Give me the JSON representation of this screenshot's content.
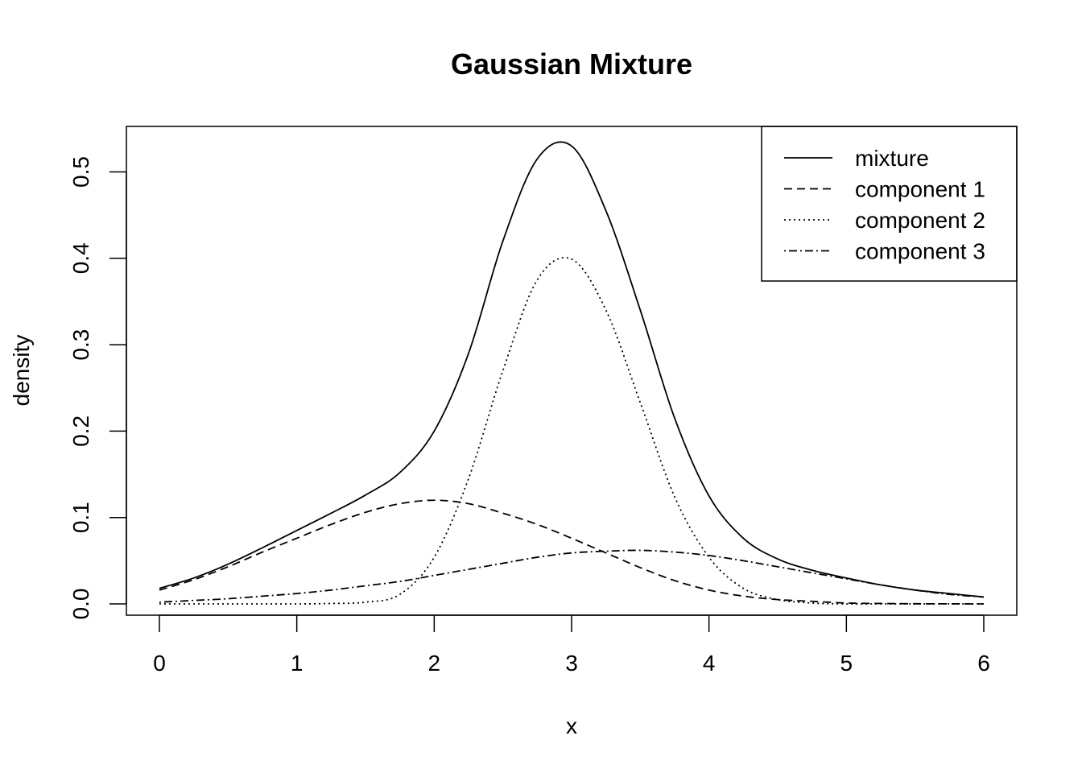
{
  "chart_data": {
    "type": "line",
    "title": "Gaussian Mixture",
    "xlabel": "x",
    "ylabel": "density",
    "xlim": [
      0,
      6
    ],
    "ylim": [
      0,
      0.52
    ],
    "x_ticks": [
      "0",
      "1",
      "2",
      "3",
      "4",
      "5",
      "6"
    ],
    "y_ticks": [
      "0.0",
      "0.1",
      "0.2",
      "0.3",
      "0.4",
      "0.5"
    ],
    "grid": false,
    "legend_position": "top-right",
    "x": [
      0,
      0.25,
      0.5,
      0.75,
      1,
      1.25,
      1.5,
      1.75,
      2,
      2.25,
      2.5,
      2.75,
      3,
      3.25,
      3.5,
      3.75,
      4,
      4.25,
      4.5,
      4.75,
      5,
      5.25,
      5.5,
      5.75,
      6
    ],
    "series": [
      {
        "name": "mixture",
        "style": "solid",
        "values": [
          0.018,
          0.03,
          0.046,
          0.065,
          0.085,
          0.105,
          0.126,
          0.152,
          0.2,
          0.29,
          0.42,
          0.515,
          0.53,
          0.455,
          0.34,
          0.215,
          0.125,
          0.076,
          0.052,
          0.039,
          0.03,
          0.022,
          0.016,
          0.012,
          0.008
        ]
      },
      {
        "name": "component 1",
        "style": "dashed",
        "values": [
          0.016,
          0.028,
          0.043,
          0.06,
          0.076,
          0.092,
          0.106,
          0.116,
          0.12,
          0.116,
          0.105,
          0.092,
          0.076,
          0.059,
          0.042,
          0.027,
          0.016,
          0.009,
          0.005,
          0.003,
          0.001,
          0.0005,
          0.0002,
          0.0001,
          0.0
        ]
      },
      {
        "name": "component 2",
        "style": "dotted",
        "values": [
          0.0,
          0.0,
          0.0,
          0.0,
          0.0,
          0.0005,
          0.002,
          0.011,
          0.054,
          0.145,
          0.27,
          0.375,
          0.399,
          0.34,
          0.233,
          0.124,
          0.054,
          0.018,
          0.005,
          0.001,
          0.0,
          0.0,
          0.0,
          0.0,
          0.0
        ]
      },
      {
        "name": "component 3",
        "style": "dashdot",
        "values": [
          0.002,
          0.004,
          0.006,
          0.009,
          0.012,
          0.016,
          0.021,
          0.026,
          0.033,
          0.04,
          0.047,
          0.054,
          0.059,
          0.061,
          0.062,
          0.06,
          0.056,
          0.05,
          0.043,
          0.036,
          0.029,
          0.022,
          0.016,
          0.011,
          0.008
        ]
      }
    ]
  }
}
